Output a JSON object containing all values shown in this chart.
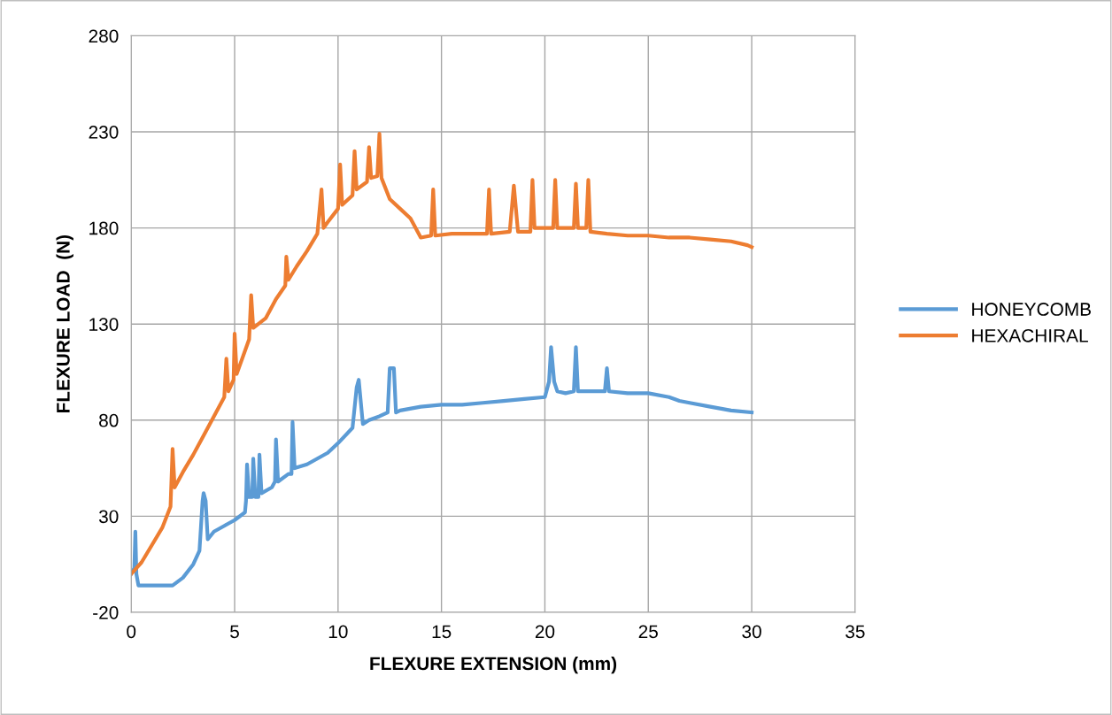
{
  "chart_data": {
    "type": "line",
    "xlabel": "FLEXURE EXTENSION (mm)",
    "ylabel": "FLEXURE LOAD  (N)",
    "xlim": [
      0,
      35
    ],
    "xticks": [
      0,
      5,
      10,
      15,
      20,
      25,
      30,
      35
    ],
    "ylim": [
      -20,
      280
    ],
    "yticks": [
      -20,
      30,
      80,
      130,
      180,
      230,
      280
    ],
    "grid": true,
    "legend": "right",
    "marker": "none",
    "line_style": "solid",
    "series": [
      {
        "name": "HONEYCOMB",
        "color": "#5b9bd5",
        "x": [
          0,
          0.15,
          0.2,
          0.25,
          0.35,
          1.0,
          2.0,
          2.5,
          3.0,
          3.3,
          3.45,
          3.5,
          3.6,
          3.7,
          4.0,
          4.5,
          5.0,
          5.5,
          5.55,
          5.6,
          5.7,
          5.85,
          5.9,
          6.0,
          6.15,
          6.2,
          6.3,
          6.8,
          6.95,
          7.0,
          7.1,
          7.6,
          7.75,
          7.8,
          7.9,
          8.5,
          9.0,
          9.5,
          10.0,
          10.7,
          10.9,
          11.0,
          11.2,
          11.5,
          12.0,
          12.4,
          12.5,
          12.7,
          12.8,
          13.0,
          14.0,
          15.0,
          16.0,
          17.0,
          18.0,
          19.0,
          20.0,
          20.2,
          20.3,
          20.45,
          20.6,
          21.0,
          21.4,
          21.5,
          21.6,
          22.0,
          22.9,
          23.0,
          23.1,
          24.0,
          25.0,
          26.0,
          26.5,
          27.0,
          28.0,
          29.0,
          30.0
        ],
        "values": [
          0,
          3,
          22,
          0,
          -6,
          -6,
          -6,
          -2,
          5,
          12,
          38,
          42,
          38,
          18,
          22,
          25,
          28,
          32,
          38,
          57,
          40,
          40,
          60,
          40,
          40,
          62,
          42,
          45,
          48,
          70,
          48,
          52,
          52,
          79,
          55,
          57,
          60,
          63,
          68,
          76,
          97,
          101,
          78,
          80,
          82,
          84,
          107,
          107,
          84,
          85,
          87,
          88,
          88,
          89,
          90,
          91,
          92,
          100,
          118,
          100,
          95,
          94,
          95,
          118,
          95,
          95,
          95,
          107,
          95,
          94,
          94,
          92,
          90,
          89,
          87,
          85,
          84
        ]
      },
      {
        "name": "HEXACHIRAL",
        "color": "#ed7d31",
        "x": [
          0,
          0.5,
          1.0,
          1.5,
          1.9,
          2.0,
          2.1,
          2.5,
          3.0,
          3.5,
          4.0,
          4.5,
          4.6,
          4.7,
          4.95,
          5.0,
          5.1,
          5.7,
          5.8,
          5.9,
          6.5,
          7.0,
          7.45,
          7.5,
          7.6,
          8.0,
          8.5,
          9.0,
          9.2,
          9.3,
          9.5,
          10.0,
          10.1,
          10.2,
          10.7,
          10.8,
          10.9,
          11.4,
          11.5,
          11.6,
          11.9,
          12.0,
          12.1,
          12.5,
          13.0,
          13.5,
          14.0,
          14.5,
          14.6,
          14.7,
          15.5,
          17.2,
          17.3,
          17.4,
          18.3,
          18.5,
          18.7,
          19.3,
          19.4,
          19.5,
          20.0,
          20.4,
          20.5,
          20.6,
          21.4,
          21.5,
          21.6,
          22.0,
          22.1,
          22.2,
          23.0,
          24.0,
          25.0,
          26.0,
          27.0,
          28.0,
          29.0,
          29.8,
          30.0
        ],
        "values": [
          0,
          6,
          15,
          24,
          35,
          65,
          45,
          53,
          62,
          72,
          82,
          92,
          112,
          95,
          101,
          125,
          104,
          122,
          145,
          128,
          133,
          143,
          150,
          165,
          153,
          160,
          168,
          177,
          200,
          180,
          183,
          190,
          213,
          192,
          197,
          220,
          200,
          204,
          222,
          206,
          207,
          229,
          206,
          195,
          190,
          185,
          175,
          176,
          200,
          176,
          177,
          177,
          200,
          177,
          178,
          202,
          178,
          178,
          205,
          180,
          180,
          180,
          205,
          180,
          180,
          203,
          180,
          180,
          205,
          178,
          177,
          176,
          176,
          175,
          175,
          174,
          173,
          171,
          170
        ]
      }
    ]
  }
}
